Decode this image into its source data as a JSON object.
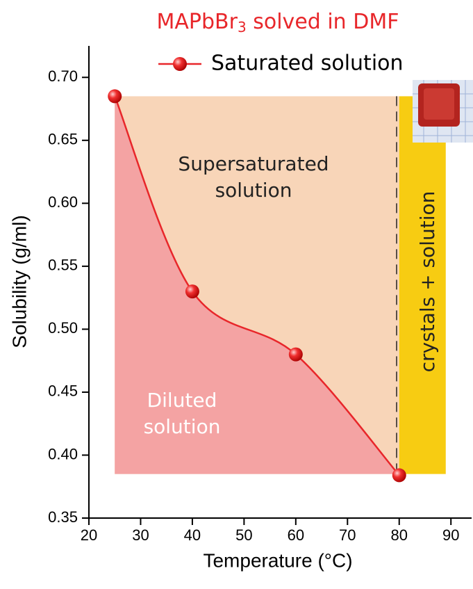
{
  "chart_data": {
    "type": "line",
    "title": [
      "MAPbBr",
      "3",
      " solved in DMF"
    ],
    "x_label": "Temperature (°C)",
    "y_label": "Solubility (g/ml)",
    "xlim": [
      20,
      94
    ],
    "ylim": [
      0.35,
      0.725
    ],
    "xticks": [
      20,
      30,
      40,
      50,
      60,
      70,
      80,
      90
    ],
    "yticks": [
      {
        "value": 0.35,
        "label": "0.35"
      },
      {
        "value": 0.4,
        "label": "0.40"
      },
      0.45,
      {
        "value": 0.5,
        "label": "0.50"
      },
      0.55,
      {
        "value": 0.6,
        "label": "0.60"
      },
      0.65,
      {
        "value": 0.7,
        "label": "0.70"
      }
    ],
    "x": [
      25,
      40,
      60,
      80
    ],
    "series": [
      {
        "name": "Saturated solution",
        "color": "#e8262a",
        "values": [
          0.685,
          0.53,
          0.48,
          0.384
        ]
      }
    ],
    "regions": [
      {
        "label": [
          "Supersaturated",
          "solution"
        ],
        "color": "#f8d5b8",
        "text_color": "#222222",
        "xlim": [
          25,
          80
        ],
        "ylim": [
          0.385,
          0.685
        ]
      },
      {
        "label": [
          "Diluted",
          "solution"
        ],
        "color": "#f4a3a3",
        "text_color": "#ffffff"
      },
      {
        "label": [
          "crystals + solution"
        ],
        "color": "#f7cc12",
        "text_color": "#222222",
        "xlim": [
          80,
          89
        ],
        "ylim": [
          0.385,
          0.685
        ]
      }
    ],
    "dashed_line_x": 79.5,
    "legend": "top"
  }
}
